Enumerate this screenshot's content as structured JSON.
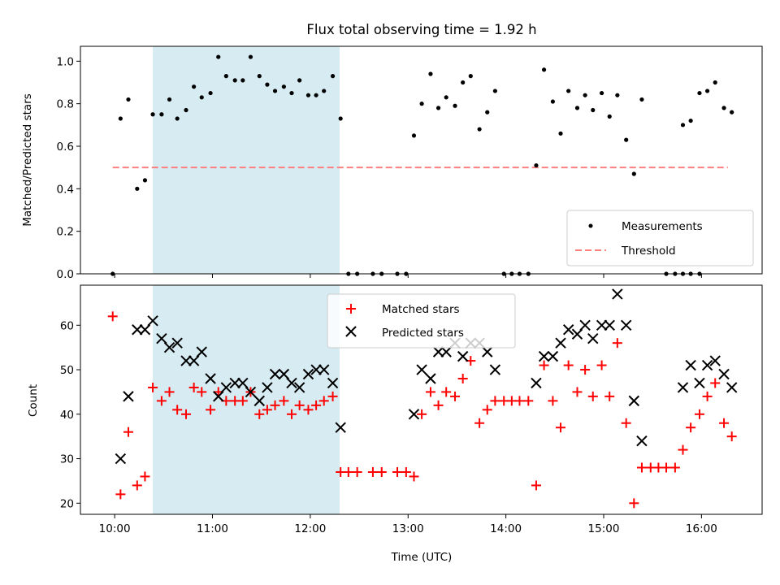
{
  "chart_data": {
    "title": "Flux total observing time = 1.92 h",
    "xlabel": "Time (UTC)",
    "x_ticks": [
      {
        "t": 10.0,
        "label": "10:00"
      },
      {
        "t": 11.0,
        "label": "11:00"
      },
      {
        "t": 12.0,
        "label": "12:00"
      },
      {
        "t": 13.0,
        "label": "13:00"
      },
      {
        "t": 14.0,
        "label": "14:00"
      },
      {
        "t": 15.0,
        "label": "15:00"
      },
      {
        "t": 16.0,
        "label": "16:00"
      }
    ],
    "xlim": [
      9.65,
      16.62
    ],
    "highlight_span": {
      "from": 10.39,
      "to": 12.3,
      "color": "#add8e6"
    },
    "top": {
      "type": "scatter",
      "ylabel": "Matched/Predicted stars",
      "ylim": [
        0,
        1.07
      ],
      "y_ticks": [
        "0.0",
        "0.2",
        "0.4",
        "0.6",
        "0.8",
        "1.0"
      ],
      "threshold": {
        "name": "Threshold",
        "value": 0.5,
        "from": 9.98,
        "to": 16.27,
        "color": "#ff7f7f"
      },
      "measurements_name": "Measurements",
      "measurements": [
        [
          9.98,
          0.0
        ],
        [
          10.06,
          0.73
        ],
        [
          10.14,
          0.82
        ],
        [
          10.23,
          0.4
        ],
        [
          10.31,
          0.44
        ],
        [
          10.39,
          0.75
        ],
        [
          10.48,
          0.75
        ],
        [
          10.56,
          0.82
        ],
        [
          10.64,
          0.73
        ],
        [
          10.73,
          0.77
        ],
        [
          10.81,
          0.88
        ],
        [
          10.89,
          0.83
        ],
        [
          10.98,
          0.85
        ],
        [
          11.06,
          1.02
        ],
        [
          11.14,
          0.93
        ],
        [
          11.23,
          0.91
        ],
        [
          11.31,
          0.91
        ],
        [
          11.39,
          1.02
        ],
        [
          11.48,
          0.93
        ],
        [
          11.56,
          0.89
        ],
        [
          11.64,
          0.86
        ],
        [
          11.73,
          0.88
        ],
        [
          11.81,
          0.85
        ],
        [
          11.89,
          0.91
        ],
        [
          11.98,
          0.84
        ],
        [
          12.06,
          0.84
        ],
        [
          12.14,
          0.86
        ],
        [
          12.23,
          0.93
        ],
        [
          12.31,
          0.73
        ],
        [
          12.39,
          0.0
        ],
        [
          12.48,
          0.0
        ],
        [
          12.64,
          0.0
        ],
        [
          12.73,
          0.0
        ],
        [
          12.89,
          0.0
        ],
        [
          12.98,
          0.0
        ],
        [
          13.06,
          0.65
        ],
        [
          13.14,
          0.8
        ],
        [
          13.23,
          0.94
        ],
        [
          13.31,
          0.78
        ],
        [
          13.39,
          0.83
        ],
        [
          13.48,
          0.79
        ],
        [
          13.56,
          0.9
        ],
        [
          13.64,
          0.93
        ],
        [
          13.73,
          0.68
        ],
        [
          13.81,
          0.76
        ],
        [
          13.89,
          0.86
        ],
        [
          13.98,
          0.0
        ],
        [
          14.06,
          0.0
        ],
        [
          14.14,
          0.0
        ],
        [
          14.23,
          0.0
        ],
        [
          14.31,
          0.51
        ],
        [
          14.39,
          0.96
        ],
        [
          14.48,
          0.81
        ],
        [
          14.56,
          0.66
        ],
        [
          14.64,
          0.86
        ],
        [
          14.73,
          0.78
        ],
        [
          14.81,
          0.84
        ],
        [
          14.89,
          0.77
        ],
        [
          14.98,
          0.85
        ],
        [
          15.06,
          0.74
        ],
        [
          15.14,
          0.84
        ],
        [
          15.23,
          0.63
        ],
        [
          15.31,
          0.47
        ],
        [
          15.39,
          0.82
        ],
        [
          15.64,
          0.0
        ],
        [
          15.73,
          0.0
        ],
        [
          15.81,
          0.0
        ],
        [
          15.89,
          0.0
        ],
        [
          15.98,
          0.0
        ],
        [
          15.81,
          0.7
        ],
        [
          15.89,
          0.72
        ],
        [
          15.98,
          0.85
        ],
        [
          16.06,
          0.86
        ],
        [
          16.14,
          0.9
        ],
        [
          16.23,
          0.78
        ],
        [
          16.31,
          0.76
        ]
      ]
    },
    "bottom": {
      "type": "scatter",
      "ylabel": "Count",
      "ylim": [
        17.5,
        69.0
      ],
      "y_ticks": [
        20,
        30,
        40,
        50,
        60
      ],
      "series": [
        {
          "name": "Matched stars",
          "marker": "plus",
          "color": "#ff0000",
          "points": [
            [
              9.98,
              62
            ],
            [
              10.06,
              22
            ],
            [
              10.14,
              36
            ],
            [
              10.23,
              24
            ],
            [
              10.31,
              26
            ],
            [
              10.39,
              46
            ],
            [
              10.48,
              43
            ],
            [
              10.56,
              45
            ],
            [
              10.64,
              41
            ],
            [
              10.73,
              40
            ],
            [
              10.81,
              46
            ],
            [
              10.89,
              45
            ],
            [
              10.98,
              41
            ],
            [
              11.06,
              45
            ],
            [
              11.14,
              43
            ],
            [
              11.23,
              43
            ],
            [
              11.31,
              43
            ],
            [
              11.39,
              45
            ],
            [
              11.48,
              40
            ],
            [
              11.56,
              41
            ],
            [
              11.64,
              42
            ],
            [
              11.73,
              43
            ],
            [
              11.81,
              40
            ],
            [
              11.89,
              42
            ],
            [
              11.98,
              41
            ],
            [
              12.06,
              42
            ],
            [
              12.14,
              43
            ],
            [
              12.23,
              44
            ],
            [
              12.31,
              27
            ],
            [
              12.39,
              27
            ],
            [
              12.48,
              27
            ],
            [
              12.64,
              27
            ],
            [
              12.73,
              27
            ],
            [
              12.89,
              27
            ],
            [
              12.98,
              27
            ],
            [
              13.06,
              26
            ],
            [
              13.14,
              40
            ],
            [
              13.23,
              45
            ],
            [
              13.31,
              42
            ],
            [
              13.39,
              45
            ],
            [
              13.48,
              44
            ],
            [
              13.56,
              48
            ],
            [
              13.64,
              52
            ],
            [
              13.73,
              38
            ],
            [
              13.81,
              41
            ],
            [
              13.89,
              43
            ],
            [
              13.98,
              43
            ],
            [
              14.06,
              43
            ],
            [
              14.14,
              43
            ],
            [
              14.23,
              43
            ],
            [
              14.31,
              24
            ],
            [
              14.39,
              51
            ],
            [
              14.48,
              43
            ],
            [
              14.56,
              37
            ],
            [
              14.64,
              51
            ],
            [
              14.73,
              45
            ],
            [
              14.81,
              50
            ],
            [
              14.89,
              44
            ],
            [
              14.98,
              51
            ],
            [
              15.06,
              44
            ],
            [
              15.14,
              56
            ],
            [
              15.23,
              38
            ],
            [
              15.31,
              20
            ],
            [
              15.39,
              28
            ],
            [
              15.48,
              28
            ],
            [
              15.56,
              28
            ],
            [
              15.64,
              28
            ],
            [
              15.73,
              28
            ],
            [
              15.81,
              32
            ],
            [
              15.89,
              37
            ],
            [
              15.98,
              40
            ],
            [
              16.06,
              44
            ],
            [
              16.14,
              47
            ],
            [
              16.23,
              38
            ],
            [
              16.31,
              35
            ]
          ]
        },
        {
          "name": "Predicted stars",
          "marker": "x",
          "color": "#000000",
          "points": [
            [
              10.06,
              30
            ],
            [
              10.14,
              44
            ],
            [
              10.23,
              59
            ],
            [
              10.31,
              59
            ],
            [
              10.39,
              61
            ],
            [
              10.48,
              57
            ],
            [
              10.56,
              55
            ],
            [
              10.64,
              56
            ],
            [
              10.73,
              52
            ],
            [
              10.81,
              52
            ],
            [
              10.89,
              54
            ],
            [
              10.98,
              48
            ],
            [
              11.06,
              44
            ],
            [
              11.14,
              46
            ],
            [
              11.23,
              47
            ],
            [
              11.31,
              47
            ],
            [
              11.39,
              45
            ],
            [
              11.48,
              43
            ],
            [
              11.56,
              46
            ],
            [
              11.64,
              49
            ],
            [
              11.73,
              49
            ],
            [
              11.81,
              47
            ],
            [
              11.89,
              46
            ],
            [
              11.98,
              49
            ],
            [
              12.06,
              50
            ],
            [
              12.14,
              50
            ],
            [
              12.23,
              47
            ],
            [
              12.31,
              37
            ],
            [
              13.06,
              40
            ],
            [
              13.14,
              50
            ],
            [
              13.23,
              48
            ],
            [
              13.31,
              54
            ],
            [
              13.39,
              54
            ],
            [
              13.48,
              56
            ],
            [
              13.56,
              53
            ],
            [
              13.64,
              56
            ],
            [
              13.73,
              56
            ],
            [
              13.81,
              54
            ],
            [
              13.89,
              50
            ],
            [
              14.31,
              47
            ],
            [
              14.39,
              53
            ],
            [
              14.48,
              53
            ],
            [
              14.56,
              56
            ],
            [
              14.64,
              59
            ],
            [
              14.73,
              58
            ],
            [
              14.81,
              60
            ],
            [
              14.89,
              57
            ],
            [
              14.98,
              60
            ],
            [
              15.06,
              60
            ],
            [
              15.14,
              67
            ],
            [
              15.23,
              60
            ],
            [
              15.31,
              43
            ],
            [
              15.39,
              34
            ],
            [
              15.81,
              46
            ],
            [
              15.89,
              51
            ],
            [
              15.98,
              47
            ],
            [
              16.06,
              51
            ],
            [
              16.14,
              52
            ],
            [
              16.23,
              49
            ],
            [
              16.31,
              46
            ]
          ]
        }
      ]
    }
  }
}
